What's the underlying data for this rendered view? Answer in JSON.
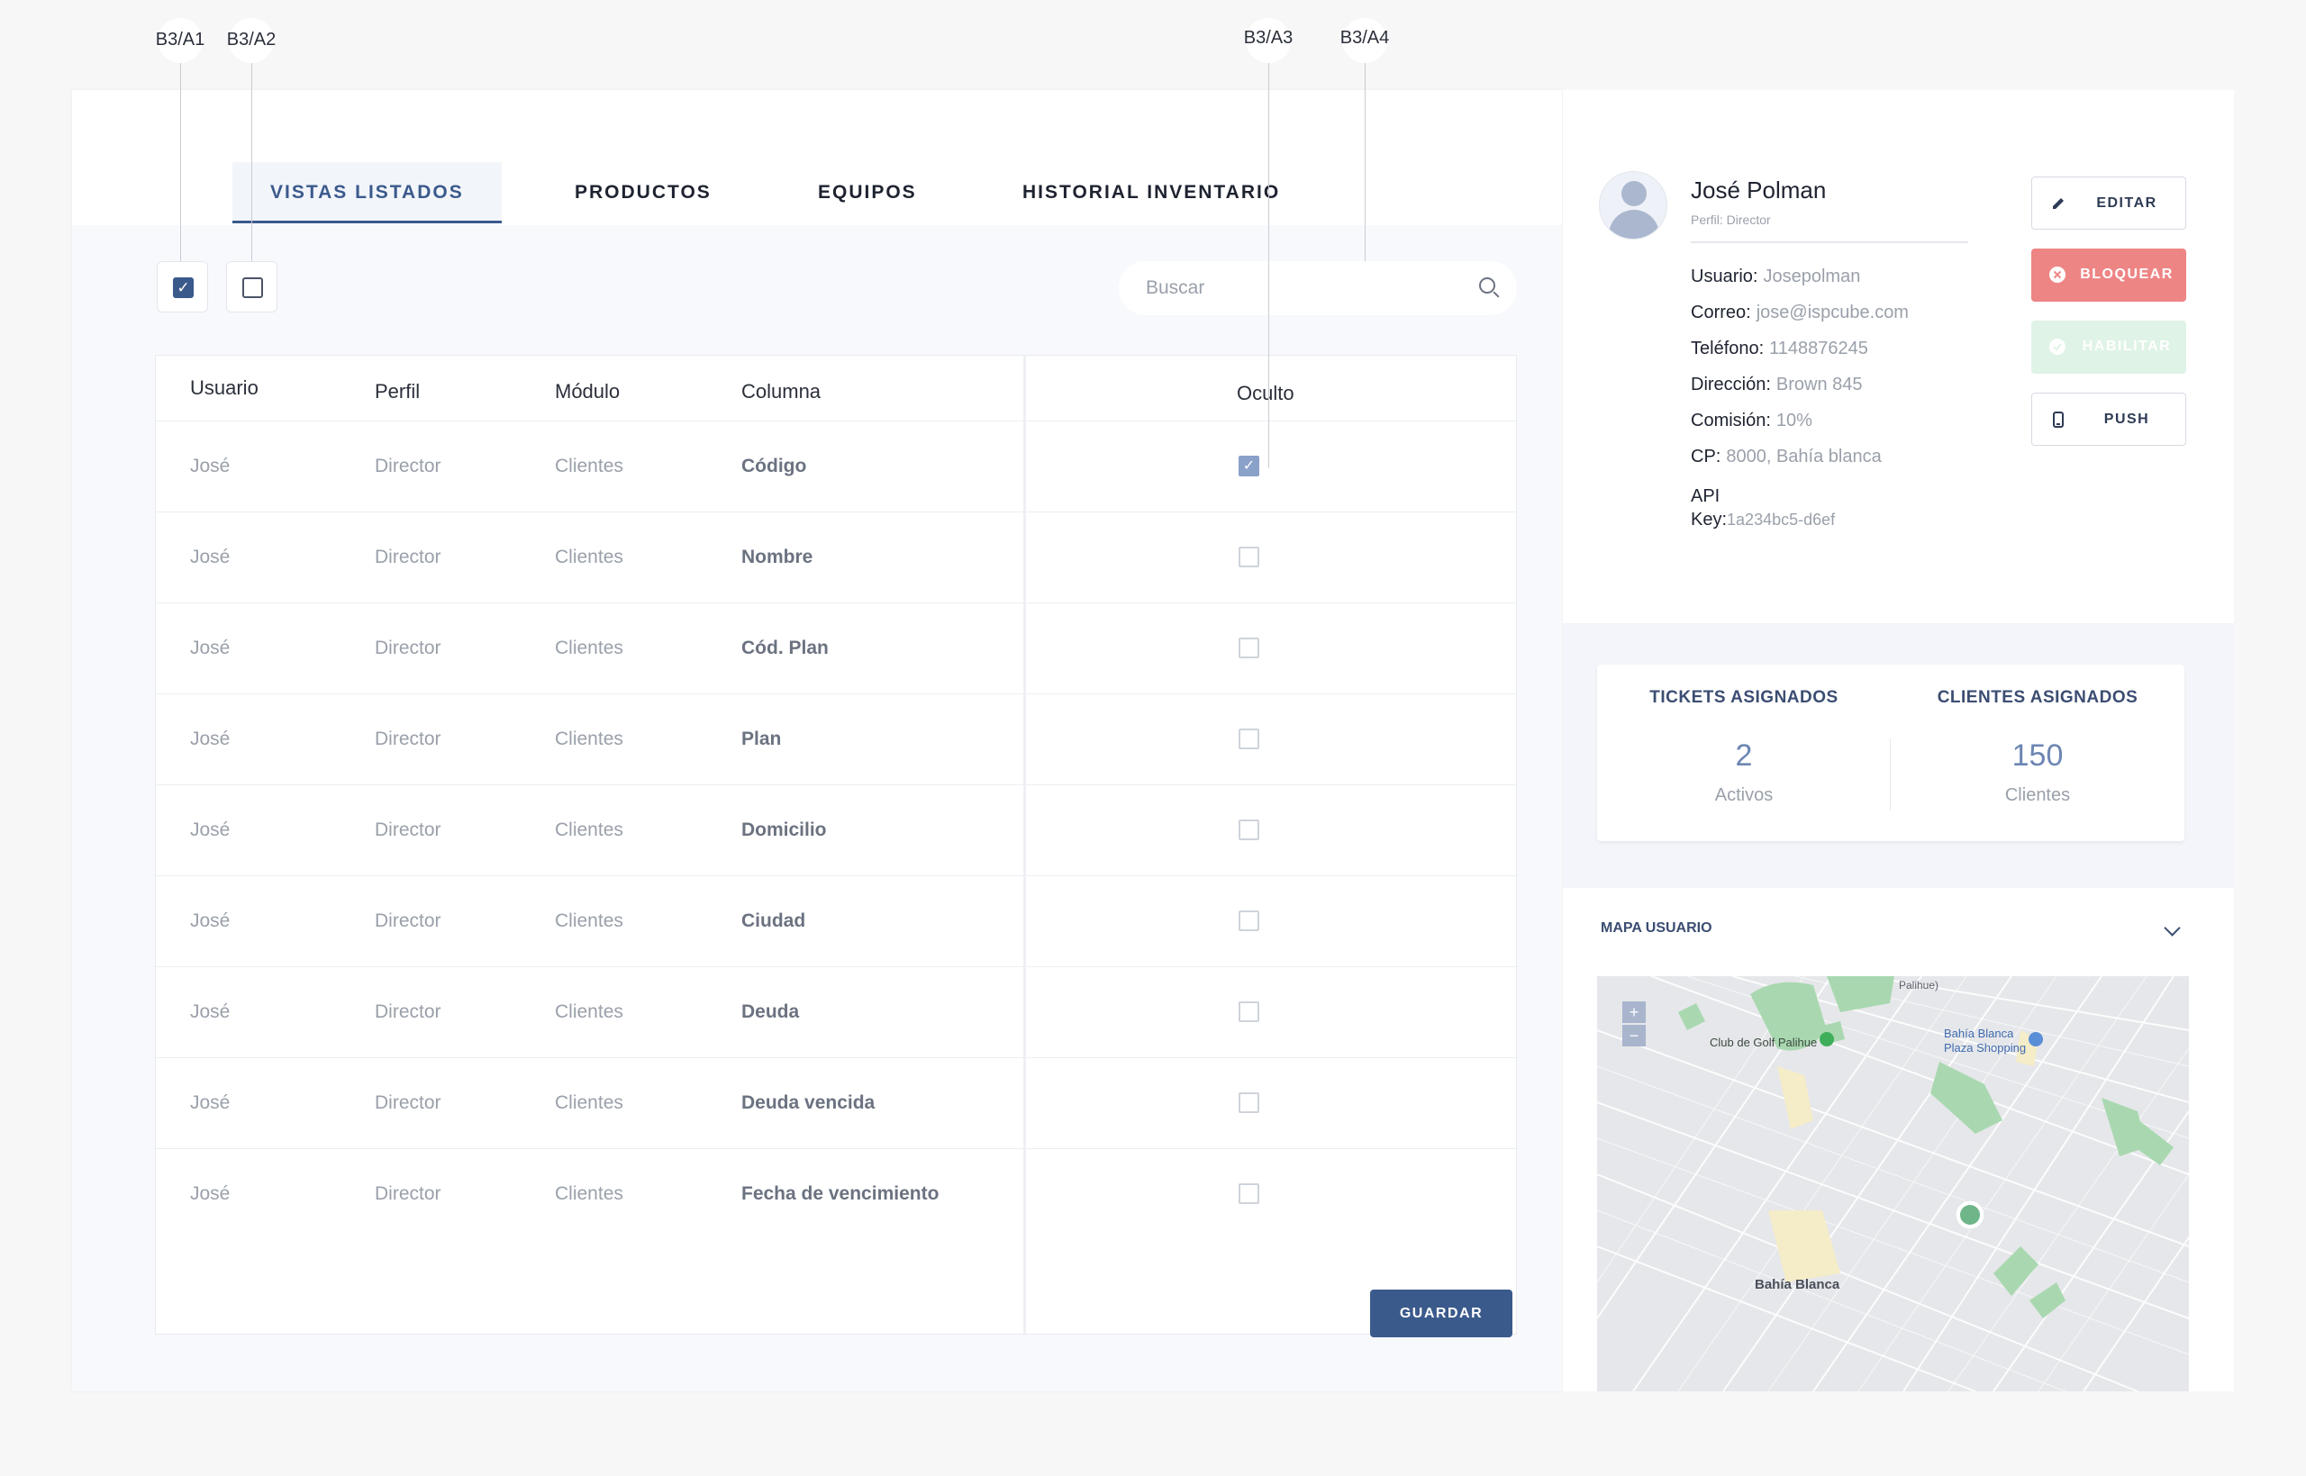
{
  "annotations": [
    "B3/A1",
    "B3/A2",
    "B3/A3",
    "B3/A4"
  ],
  "tabs": [
    {
      "label": "VISTAS LISTADOS",
      "active": true
    },
    {
      "label": "PRODUCTOS",
      "active": false
    },
    {
      "label": "EQUIPOS",
      "active": false
    },
    {
      "label": "HISTORIAL INVENTARIO",
      "active": false
    }
  ],
  "toolbar": {
    "select_all_checked": true,
    "select_none_checked": false
  },
  "search": {
    "placeholder": "Buscar",
    "icon": "search-icon"
  },
  "table": {
    "headers": {
      "usuario": "Usuario",
      "perfil": "Perfil",
      "modulo": "Módulo",
      "columna": "Columna",
      "oculto": "Oculto"
    },
    "rows": [
      {
        "usuario": "José",
        "perfil": "Director",
        "modulo": "Clientes",
        "columna": "Código",
        "oculto": true
      },
      {
        "usuario": "José",
        "perfil": "Director",
        "modulo": "Clientes",
        "columna": "Nombre",
        "oculto": false
      },
      {
        "usuario": "José",
        "perfil": "Director",
        "modulo": "Clientes",
        "columna": "Cód. Plan",
        "oculto": false
      },
      {
        "usuario": "José",
        "perfil": "Director",
        "modulo": "Clientes",
        "columna": "Plan",
        "oculto": false
      },
      {
        "usuario": "José",
        "perfil": "Director",
        "modulo": "Clientes",
        "columna": "Domicilio",
        "oculto": false
      },
      {
        "usuario": "José",
        "perfil": "Director",
        "modulo": "Clientes",
        "columna": "Ciudad",
        "oculto": false
      },
      {
        "usuario": "José",
        "perfil": "Director",
        "modulo": "Clientes",
        "columna": "Deuda",
        "oculto": false
      },
      {
        "usuario": "José",
        "perfil": "Director",
        "modulo": "Clientes",
        "columna": "Deuda vencida",
        "oculto": false
      },
      {
        "usuario": "José",
        "perfil": "Director",
        "modulo": "Clientes",
        "columna": "Fecha de vencimiento",
        "oculto": false
      }
    ]
  },
  "save_label": "GUARDAR",
  "profile": {
    "name": "José Polman",
    "role": "Perfil: Director",
    "fields": [
      {
        "label": "Usuario:",
        "value": "Josepolman"
      },
      {
        "label": "Correo:",
        "value": "jose@ispcube.com"
      },
      {
        "label": "Teléfono:",
        "value": "1148876245"
      },
      {
        "label": "Dirección:",
        "value": "Brown 845"
      },
      {
        "label": "Comisión:",
        "value": "10%"
      },
      {
        "label": "CP:",
        "value": "8000, Bahía blanca"
      }
    ],
    "api_label_1": "API",
    "api_label_2": "Key:",
    "api_value": "1a234bc5-d6ef"
  },
  "actions": {
    "edit": "EDITAR",
    "block": "BLOQUEAR",
    "enable": "HABILITAR",
    "push": "PUSH"
  },
  "stats": {
    "tickets_title": "TICKETS ASIGNADOS",
    "tickets_value": "2",
    "tickets_sub": "Activos",
    "clients_title": "CLIENTES ASIGNADOS",
    "clients_value": "150",
    "clients_sub": "Clientes"
  },
  "map": {
    "title": "MAPA USUARIO",
    "zoom_in": "+",
    "zoom_out": "−",
    "labels": {
      "golf": "Club de Golf Palihue",
      "plaza_1": "Bahía Blanca",
      "plaza_2": "Plaza Shopping",
      "city": "Bahía Blanca",
      "top": "Palihue)"
    }
  },
  "colors": {
    "accent": "#3b5a8c",
    "danger": "#ee8585",
    "success_soft": "#dff3e6",
    "park": "#a9d8b0"
  }
}
